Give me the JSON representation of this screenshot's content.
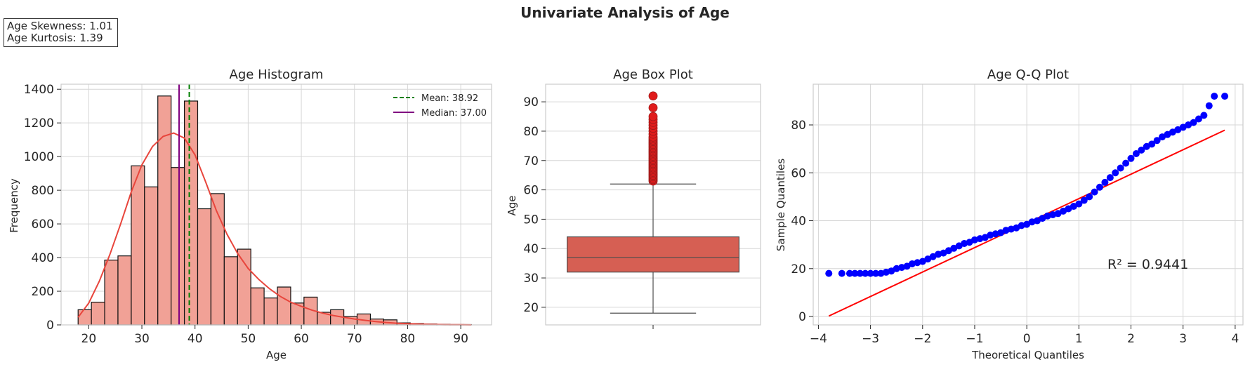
{
  "figure": {
    "title": "Univariate Analysis of Age",
    "stats_box": [
      "Age Skewness: 1.01",
      "Age Kurtosis: 1.39"
    ]
  },
  "chart_data": [
    {
      "type": "bar",
      "title": "Age Histogram",
      "xlabel": "Age",
      "ylabel": "Frequency",
      "xlim": [
        14.8,
        95.8
      ],
      "ylim": [
        0,
        1430
      ],
      "xticks": [
        20,
        30,
        40,
        50,
        60,
        70,
        80,
        90
      ],
      "yticks": [
        0,
        200,
        400,
        600,
        800,
        1000,
        1200,
        1400
      ],
      "grid": true,
      "legend_position": "top-right",
      "bin_edges": [
        18,
        20.5,
        23,
        25.5,
        28,
        30.5,
        33,
        35.5,
        38,
        40.5,
        43,
        45.5,
        48,
        50.5,
        53,
        55.5,
        58,
        60.5,
        63,
        65.5,
        68,
        70.5,
        73,
        75.5,
        78,
        80.5,
        83,
        85.5,
        88,
        90.5,
        92
      ],
      "counts": [
        90,
        135,
        385,
        410,
        945,
        820,
        1360,
        935,
        1330,
        690,
        780,
        405,
        450,
        220,
        160,
        225,
        130,
        165,
        75,
        90,
        50,
        65,
        35,
        30,
        12,
        8,
        5,
        3,
        2,
        2
      ],
      "kde": {
        "x": [
          18,
          20,
          22,
          24,
          26,
          28,
          30,
          32,
          34,
          36,
          38,
          40,
          42,
          44,
          46,
          48,
          50,
          52,
          54,
          56,
          58,
          60,
          62,
          64,
          66,
          68,
          70,
          72,
          74,
          76,
          78,
          80,
          82,
          84,
          86,
          88,
          90,
          92
        ],
        "y": [
          45,
          130,
          260,
          420,
          600,
          790,
          950,
          1060,
          1120,
          1140,
          1110,
          1010,
          850,
          680,
          540,
          425,
          335,
          270,
          215,
          170,
          135,
          110,
          88,
          70,
          56,
          45,
          35,
          27,
          20,
          14,
          10,
          7,
          5,
          3,
          2,
          1,
          1,
          0
        ]
      },
      "mean": 38.92,
      "median": 37.0,
      "legend": [
        "Mean: 38.92",
        "Median: 37.00"
      ],
      "colors": {
        "bars": "#f1a196",
        "kde": "#e8453c",
        "mean": "#008000",
        "median": "#800080"
      }
    },
    {
      "type": "box",
      "title": "Age Box Plot",
      "ylabel": "Age",
      "ylim": [
        14,
        96
      ],
      "yticks": [
        20,
        30,
        40,
        50,
        60,
        70,
        80,
        90
      ],
      "grid": true,
      "q1": 32,
      "median": 37,
      "q3": 44,
      "whisker_low": 18,
      "whisker_high": 62,
      "outliers": [
        63,
        63.5,
        64,
        64.5,
        65,
        65.5,
        66,
        66.5,
        67,
        67.5,
        68,
        68.5,
        69,
        69.5,
        70,
        70.5,
        71,
        71.5,
        72,
        72.5,
        73,
        73.5,
        74,
        74.5,
        75,
        75.5,
        76,
        76.5,
        77,
        77.5,
        78,
        79,
        80,
        81,
        82,
        83,
        84,
        85,
        88,
        92
      ],
      "colors": {
        "box": "#d65f53",
        "outlier": "#e01b1b"
      }
    },
    {
      "type": "scatter",
      "title": "Age Q-Q Plot",
      "xlabel": "Theoretical Quantiles",
      "ylabel": "Sample Quantiles",
      "xlim": [
        -4.1,
        4.15
      ],
      "ylim": [
        -3.5,
        97
      ],
      "xticks": [
        -4,
        -3,
        -2,
        -1,
        0,
        1,
        2,
        3,
        4
      ],
      "yticks": [
        0,
        20,
        40,
        60,
        80
      ],
      "grid": true,
      "annotation": "R² = 0.9441",
      "fit_line": {
        "x": [
          -3.8,
          3.8
        ],
        "y": [
          0.2,
          77.8
        ]
      },
      "points": {
        "x": [
          -3.8,
          -3.55,
          -3.4,
          -3.3,
          -3.2,
          -3.1,
          -3.0,
          -2.9,
          -2.8,
          -2.7,
          -2.6,
          -2.5,
          -2.4,
          -2.3,
          -2.2,
          -2.1,
          -2.0,
          -1.9,
          -1.8,
          -1.7,
          -1.6,
          -1.5,
          -1.4,
          -1.3,
          -1.2,
          -1.1,
          -1.0,
          -0.9,
          -0.8,
          -0.7,
          -0.6,
          -0.5,
          -0.4,
          -0.3,
          -0.2,
          -0.1,
          0.0,
          0.1,
          0.2,
          0.3,
          0.4,
          0.5,
          0.6,
          0.7,
          0.8,
          0.9,
          1.0,
          1.1,
          1.2,
          1.3,
          1.4,
          1.5,
          1.6,
          1.7,
          1.8,
          1.9,
          2.0,
          2.1,
          2.2,
          2.3,
          2.4,
          2.5,
          2.6,
          2.7,
          2.8,
          2.9,
          3.0,
          3.1,
          3.2,
          3.3,
          3.4,
          3.5,
          3.6,
          3.8
        ],
        "y": [
          18,
          18,
          18,
          18,
          18,
          18,
          18,
          18,
          18,
          18.5,
          19,
          20,
          20.5,
          21,
          22,
          22.5,
          23,
          24,
          25,
          26,
          26.5,
          27.5,
          28.5,
          29.5,
          30.5,
          31,
          32,
          32.5,
          33,
          34,
          34.5,
          35,
          36,
          36.5,
          37,
          38,
          38.5,
          39.5,
          40,
          41,
          42,
          42.5,
          43,
          44,
          45,
          46,
          47,
          48.5,
          50,
          52,
          54,
          56,
          58,
          60,
          62,
          64,
          66,
          68,
          69.5,
          71,
          72,
          73.5,
          75,
          76,
          77,
          78,
          79,
          80,
          81,
          82.5,
          84,
          88,
          92,
          92
        ]
      },
      "colors": {
        "points": "#0000ff",
        "line": "#ff0000"
      }
    }
  ]
}
